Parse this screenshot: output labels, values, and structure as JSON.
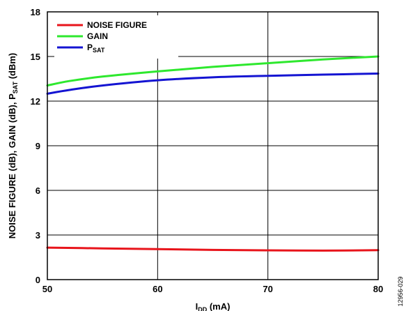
{
  "chart_data": {
    "type": "line",
    "xlabel": {
      "main": "I",
      "sub": "DD",
      "suffix": " (mA)"
    },
    "ylabel": {
      "part1": "NOISE FIGURE (dB), GAIN (dB), P",
      "sub": "SAT",
      "part2": " (dBm)"
    },
    "xlim": [
      50,
      80
    ],
    "ylim": [
      0,
      18
    ],
    "x_ticks": [
      50,
      60,
      70,
      80
    ],
    "y_ticks": [
      0,
      3,
      6,
      9,
      12,
      15,
      18
    ],
    "grid": true,
    "legend_position": "top-left",
    "series": [
      {
        "name": "NOISE FIGURE",
        "color": "#e8141b",
        "x": [
          50,
          55,
          60,
          65,
          70,
          75,
          80
        ],
        "y": [
          2.15,
          2.1,
          2.05,
          2.0,
          1.97,
          1.95,
          1.98
        ]
      },
      {
        "name": "GAIN",
        "color": "#2ee82e",
        "x": [
          50,
          52,
          55,
          60,
          65,
          70,
          75,
          80
        ],
        "y": [
          13.05,
          13.35,
          13.65,
          14.0,
          14.3,
          14.55,
          14.8,
          15.0
        ]
      },
      {
        "name": "P",
        "name_sub": "SAT",
        "color": "#1414d2",
        "x": [
          50,
          52,
          55,
          60,
          65,
          70,
          75,
          80
        ],
        "y": [
          12.5,
          12.75,
          13.05,
          13.4,
          13.6,
          13.7,
          13.78,
          13.85
        ]
      }
    ]
  },
  "figure_id": "12956-029"
}
